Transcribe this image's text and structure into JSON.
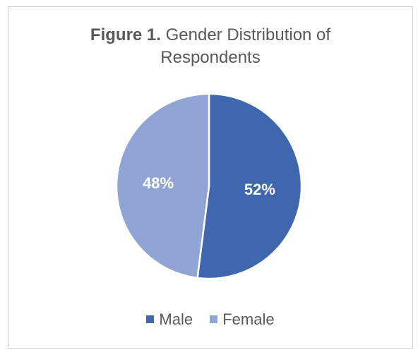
{
  "chart_data": {
    "type": "pie",
    "title_bold": "Figure 1.",
    "title_rest_line1": "Gender Distribution of",
    "title_line2": "Respondents",
    "categories": [
      "Male",
      "Female"
    ],
    "values": [
      52,
      48
    ],
    "data_labels": [
      "52%",
      "48%"
    ],
    "colors": [
      "#4066ad",
      "#91a5d4"
    ],
    "legend_position": "bottom"
  }
}
